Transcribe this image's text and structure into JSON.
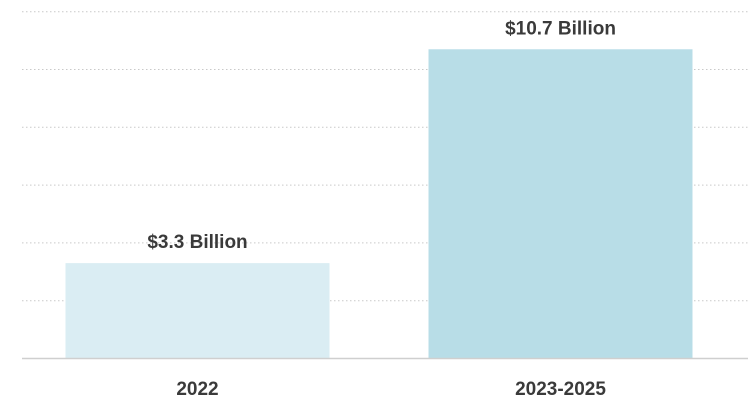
{
  "chart_data": {
    "type": "bar",
    "categories": [
      "2022",
      "2023-2025"
    ],
    "values": [
      3.3,
      10.7
    ],
    "data_labels": [
      "$3.3 Billion",
      "$10.7 Billion"
    ],
    "colors": [
      "#daedf3",
      "#b8dde7"
    ],
    "title": "",
    "xlabel": "",
    "ylabel": "",
    "ylim": [
      0,
      12
    ],
    "grid": true,
    "legend": "none"
  }
}
